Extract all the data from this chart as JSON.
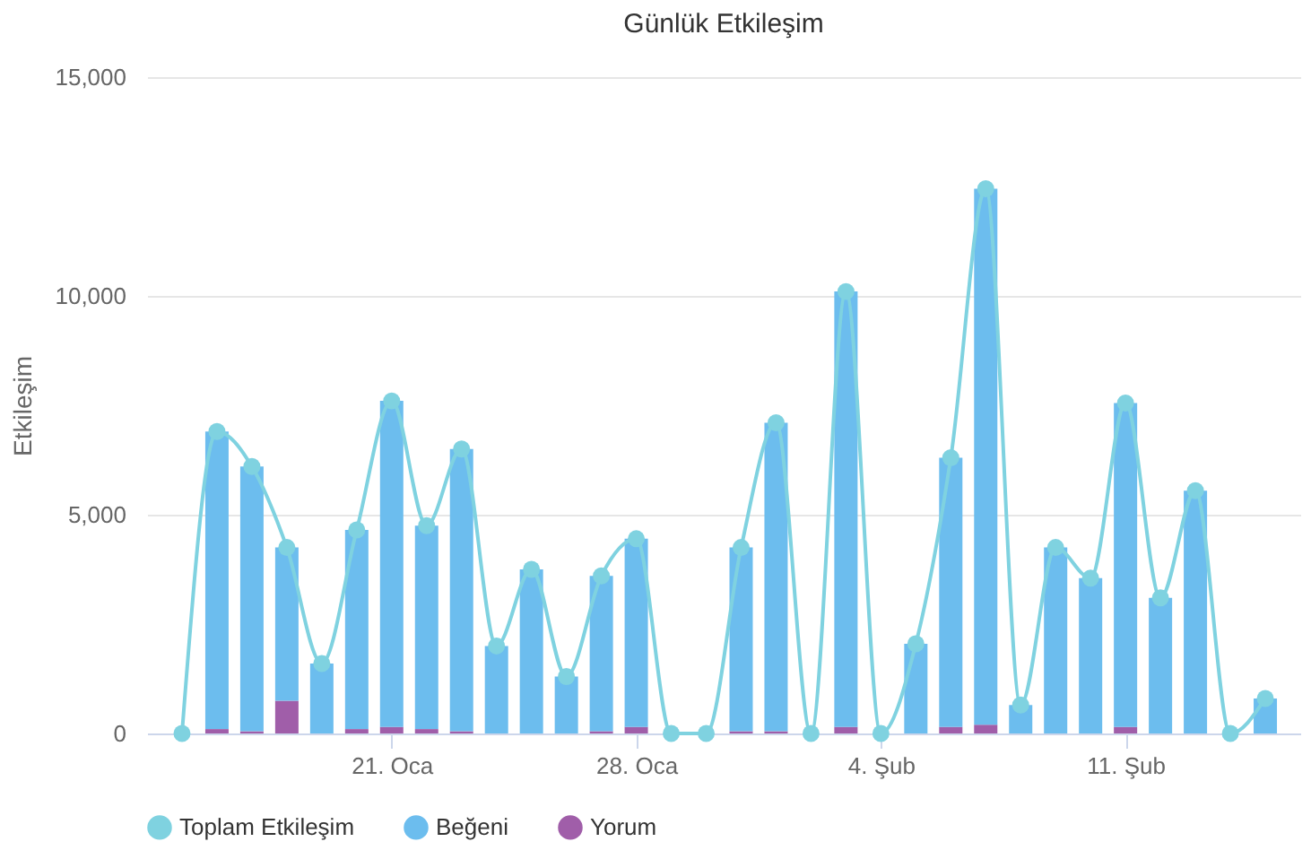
{
  "chart_data": {
    "type": "bar",
    "title": "Günlük Etkileşim",
    "ylabel": "Etkileşim",
    "stacked": true,
    "x": [
      "--01-15",
      "--01-16",
      "--01-17",
      "--01-18",
      "--01-19",
      "--01-20",
      "--01-21",
      "--01-22",
      "--01-23",
      "--01-24",
      "--01-25",
      "--01-26",
      "--01-27",
      "--01-28",
      "--01-29",
      "--01-30",
      "--01-31",
      "--02-01",
      "--02-02",
      "--02-03",
      "--02-04",
      "--02-05",
      "--02-06",
      "--02-07",
      "--02-08",
      "--02-09",
      "--02-10",
      "--02-11",
      "--02-12",
      "--02-13",
      "--02-14",
      "--02-15"
    ],
    "xlim": [
      "--01-14",
      "--02-16"
    ],
    "xticks": [
      {
        "value": "--01-21",
        "label": "21. Oca"
      },
      {
        "value": "--01-28",
        "label": "28. Oca"
      },
      {
        "value": "--02-04",
        "label": "4. Şub"
      },
      {
        "value": "--02-11",
        "label": "11. Şub"
      }
    ],
    "ylim": [
      0,
      15000
    ],
    "yticks": [
      {
        "value": 0,
        "label": "0"
      },
      {
        "value": 5000,
        "label": "5,000"
      },
      {
        "value": 10000,
        "label": "10,000"
      },
      {
        "value": 15000,
        "label": "15,000"
      }
    ],
    "grid": "y",
    "legend": "bottom",
    "series": [
      {
        "name": "Toplam Etkileşim",
        "type": "line",
        "marker": "circle",
        "color": "#7fd2e0",
        "values": [
          0,
          6900,
          6100,
          4250,
          1600,
          4650,
          7600,
          4750,
          6500,
          2000,
          3750,
          1300,
          3600,
          4450,
          0,
          0,
          4250,
          7100,
          0,
          10100,
          0,
          2050,
          6300,
          12450,
          650,
          4250,
          3550,
          7550,
          3100,
          5550,
          0,
          800
        ]
      },
      {
        "name": "Yorum",
        "type": "bar",
        "color": "#a05ea9",
        "values": [
          null,
          100,
          50,
          750,
          0,
          100,
          150,
          100,
          50,
          0,
          0,
          0,
          50,
          150,
          null,
          null,
          50,
          50,
          null,
          150,
          null,
          0,
          150,
          200,
          0,
          0,
          0,
          150,
          0,
          0,
          null,
          0
        ]
      },
      {
        "name": "Beğeni",
        "type": "bar",
        "color": "#6cbdee",
        "values": [
          null,
          6800,
          6050,
          3500,
          1600,
          4550,
          7450,
          4650,
          6450,
          2000,
          3750,
          1300,
          3550,
          4300,
          null,
          null,
          4200,
          7050,
          null,
          9950,
          null,
          2050,
          6150,
          12250,
          650,
          4250,
          3550,
          7400,
          3100,
          5550,
          null,
          800
        ]
      }
    ]
  }
}
